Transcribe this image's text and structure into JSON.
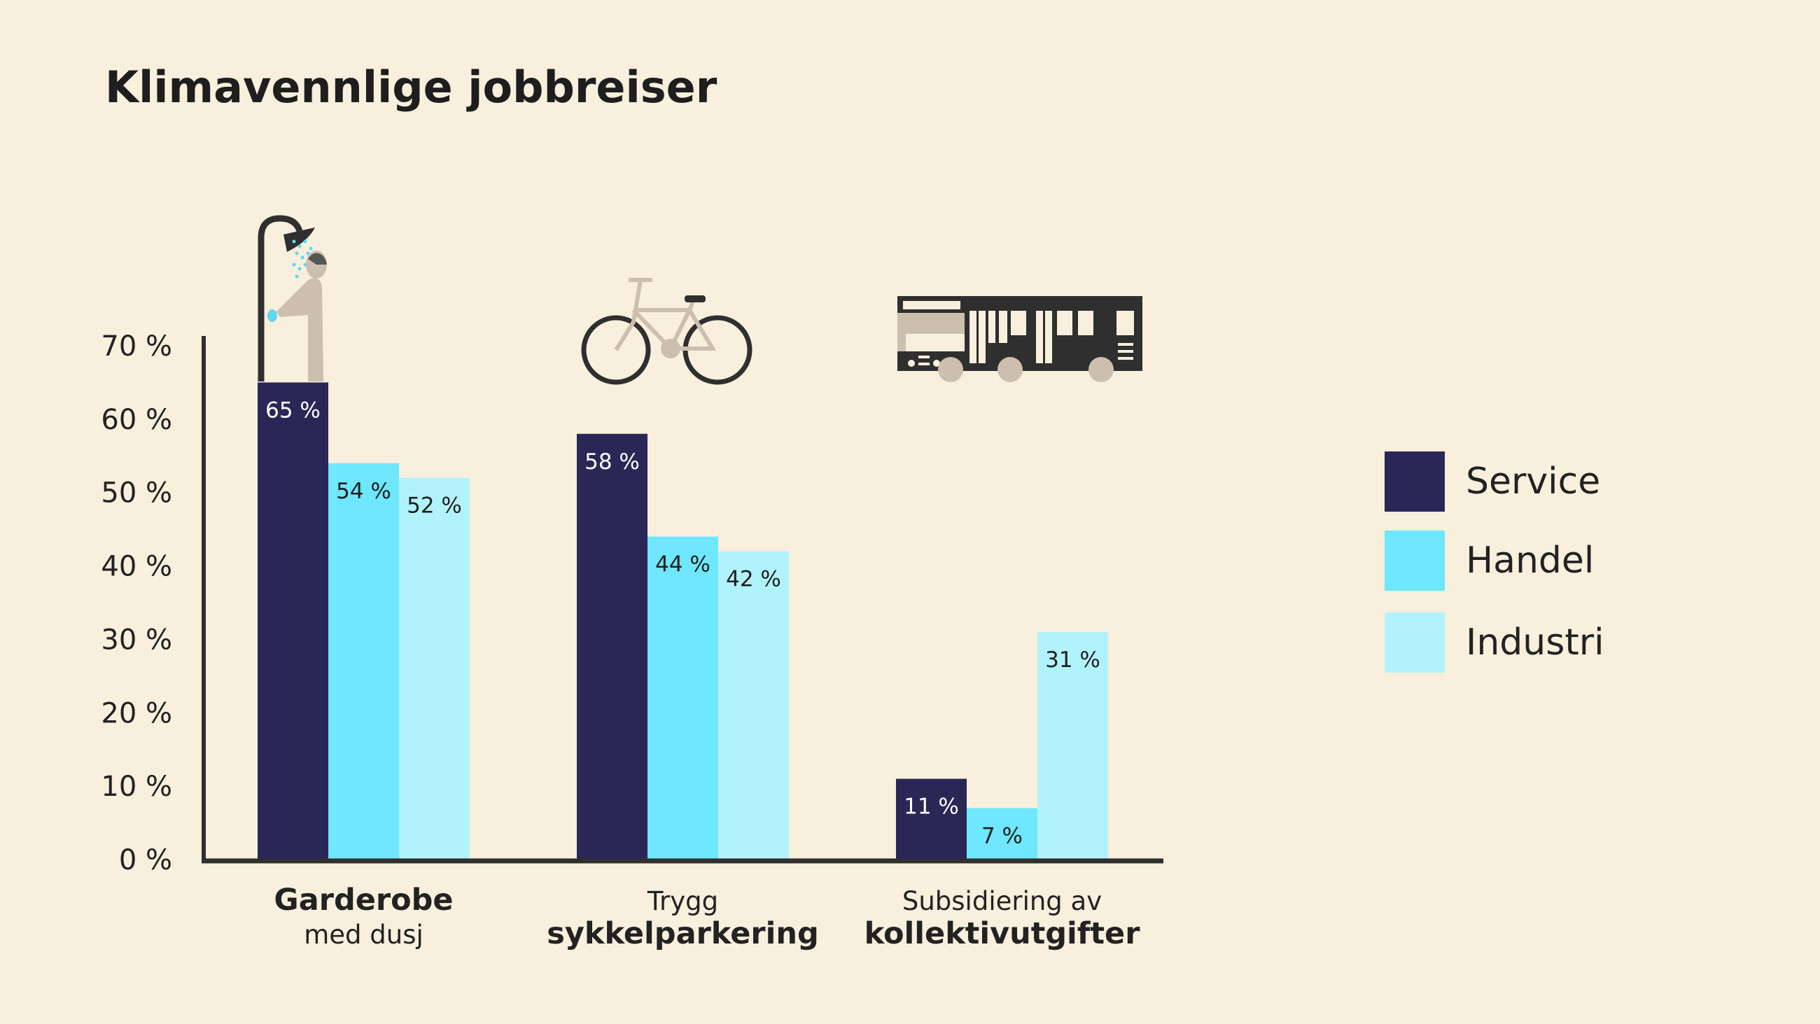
{
  "chart_data": {
    "type": "bar",
    "title": "Klimavennlige jobbreiser",
    "categories": [
      {
        "line1": "Garderobe",
        "line2": "med dusj",
        "bold_line": 1,
        "icon": "shower-icon"
      },
      {
        "line1": "Trygg",
        "line2": "sykkelparkering",
        "bold_line": 2,
        "icon": "bicycle-icon"
      },
      {
        "line1": "Subsidiering av",
        "line2": "kollektivutgifter",
        "bold_line": 2,
        "icon": "bus-icon"
      }
    ],
    "series": [
      {
        "name": "Service",
        "color": "#2a2757",
        "label_color": "#ffffff",
        "values": [
          65,
          58,
          11
        ],
        "labels": [
          "65 %",
          "58 %",
          "11 %"
        ]
      },
      {
        "name": "Handel",
        "color": "#6ee7ff",
        "label_color": "#1e1e1e",
        "values": [
          54,
          44,
          7
        ],
        "labels": [
          "54 %",
          "44 %",
          "7 %"
        ]
      },
      {
        "name": "Industri",
        "color": "#b1f3fd",
        "label_color": "#1e1e1e",
        "values": [
          52,
          42,
          31
        ],
        "labels": [
          "52 %",
          "42 %",
          "31 %"
        ]
      }
    ],
    "yticks": [
      0,
      10,
      20,
      30,
      40,
      50,
      60,
      70
    ],
    "ytick_labels": [
      "0 %",
      "10 %",
      "20 %",
      "30 %",
      "40 %",
      "50 %",
      "60 %",
      "70 %"
    ],
    "ylim": [
      0,
      70
    ],
    "grid": false,
    "legend_position": "right",
    "xlabel": "",
    "ylabel": ""
  }
}
